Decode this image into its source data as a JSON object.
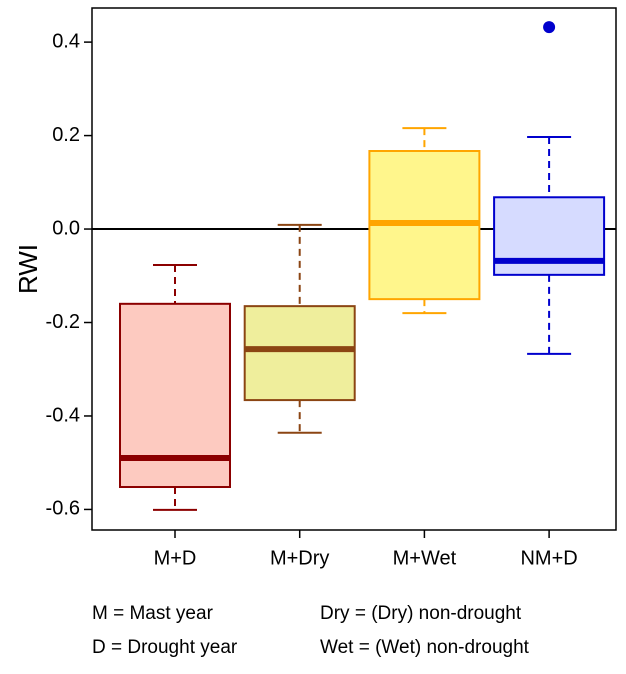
{
  "chart_data": {
    "type": "box",
    "ylabel": "RWI",
    "categories": [
      "M+D",
      "M+Dry",
      "M+Wet",
      "NM+D"
    ],
    "boxes": [
      {
        "whislo": -0.601,
        "q1": -0.552,
        "med": -0.49,
        "q3": -0.16,
        "whishi": -0.077,
        "fliers": [],
        "color": "#8b0000",
        "fill": "#fdcac0"
      },
      {
        "whislo": -0.436,
        "q1": -0.366,
        "med": -0.257,
        "q3": -0.165,
        "whishi": 0.009,
        "fliers": [],
        "color": "#8b4513",
        "fill": "#efee9c"
      },
      {
        "whislo": -0.18,
        "q1": -0.15,
        "med": 0.013,
        "q3": 0.167,
        "whishi": 0.216,
        "fliers": [],
        "color": "#ffa500",
        "fill": "#fff68c"
      },
      {
        "whislo": -0.267,
        "q1": -0.098,
        "med": -0.068,
        "q3": 0.068,
        "whishi": 0.197,
        "fliers": [
          0.432
        ],
        "color": "#0000cd",
        "fill": "#d6dbff"
      }
    ],
    "ylim": [
      -0.644,
      0.473
    ],
    "yticks": [
      -0.6,
      -0.4,
      -0.2,
      {
        "value": 0,
        "label": "0.0"
      },
      0.2,
      0.4
    ],
    "hline": 0,
    "notes": [
      "M = Mast year",
      "Dry = (Dry) non-drought",
      "D = Drought year",
      "Wet = (Wet) non-drought"
    ]
  }
}
